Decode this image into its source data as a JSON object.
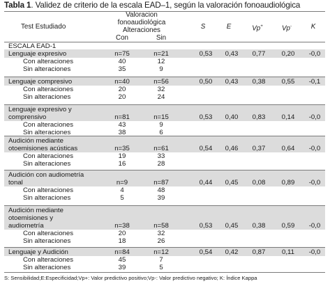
{
  "title": {
    "bold": "Tabla 1",
    "rest": ". Validez de criterio de la escala EAD–1, según la valoración fonoaudiológica"
  },
  "header": {
    "test": "Test Estudiado",
    "group_line1": "Valoracion",
    "group_line2": "fonoaudiológica",
    "group_line3": "Alteraciones",
    "con": "Con",
    "sin": "Sin",
    "s": "S",
    "e": "E",
    "vp_plus": "Vp",
    "vp_plus_sup": "+",
    "vp_minus": "Vp",
    "vp_minus_sup": "-",
    "k": "K"
  },
  "section": "ESCALA EAD-1",
  "groups": [
    {
      "lines": [
        "Lenguaje expresivo"
      ],
      "n_con": "n=75",
      "n_sin": "n=21",
      "s": "0,53",
      "e": "0,43",
      "vpp": "0,77",
      "vpn": "0,20",
      "k": "-0,0",
      "rows": [
        {
          "label": "Con alteraciones",
          "con": "40",
          "sin": "12"
        },
        {
          "label": "Sin alteraciones",
          "con": "35",
          "sin": "9"
        }
      ]
    },
    {
      "lines": [
        "Lenguaje compresivo"
      ],
      "n_con": "n=40",
      "n_sin": "n=56",
      "s": "0,50",
      "e": "0,43",
      "vpp": "0,38",
      "vpn": "0,55",
      "k": "-0,1",
      "rows": [
        {
          "label": "Con alteraciones",
          "con": "20",
          "sin": "32"
        },
        {
          "label": "Sin alteraciones",
          "con": "20",
          "sin": "24"
        }
      ]
    },
    {
      "lines": [
        "Lenguaje expresivo y",
        "comprensivo"
      ],
      "n_con": "n=81",
      "n_sin": "n=15",
      "s": "0,53",
      "e": "0,40",
      "vpp": "0,83",
      "vpn": "0,14",
      "k": "-0,0",
      "rows": [
        {
          "label": "Con alteraciones",
          "con": "43",
          "sin": "9"
        },
        {
          "label": "Sin alteraciones",
          "con": "38",
          "sin": "6"
        }
      ]
    },
    {
      "lines": [
        "Audición mediante",
        "otoemisiones acústicas"
      ],
      "n_con": "n=35",
      "n_sin": "n=61",
      "s": "0,54",
      "e": "0,46",
      "vpp": "0,37",
      "vpn": "0,64",
      "k": "-0,0",
      "rows": [
        {
          "label": "Con alteraciones",
          "con": "19",
          "sin": "33"
        },
        {
          "label": "Sin alteraciones",
          "con": "16",
          "sin": "28"
        }
      ]
    },
    {
      "lines": [
        "Audición con audiometría",
        "tonal"
      ],
      "n_con": "n=9",
      "n_sin": "n=87",
      "s": "0,44",
      "e": "0,45",
      "vpp": "0,08",
      "vpn": "0,89",
      "k": "-0,0",
      "rows": [
        {
          "label": "Con alteraciones",
          "con": "4",
          "sin": "48"
        },
        {
          "label": "Sin alteraciones",
          "con": "5",
          "sin": "39"
        }
      ]
    },
    {
      "lines": [
        "Audición mediante",
        "otoemisiones y",
        "audiometría"
      ],
      "n_con": "n=38",
      "n_sin": "n=58",
      "s": "0,53",
      "e": "0,45",
      "vpp": "0,38",
      "vpn": "0,59",
      "k": "-0,0",
      "rows": [
        {
          "label": "Con alteraciones",
          "con": "20",
          "sin": "32"
        },
        {
          "label": "Sin alteraciones",
          "con": "18",
          "sin": "26"
        }
      ]
    },
    {
      "lines": [
        "Lenguaje y Audición"
      ],
      "n_con": "n=84",
      "n_sin": "n=12",
      "s": "0,54",
      "e": "0,42",
      "vpp": "0,87",
      "vpn": "0,11",
      "k": "-0,0",
      "rows": [
        {
          "label": "Con alteraciones",
          "con": "45",
          "sin": "7"
        },
        {
          "label": "Sin alteraciones",
          "con": "39",
          "sin": "5"
        }
      ]
    }
  ],
  "footer": "S: Sensibilidad;E:Especificidad;Vp+: Valor predictivo positivo;Vp-: Valor predictivo negativo; K: Índice Kappa"
}
